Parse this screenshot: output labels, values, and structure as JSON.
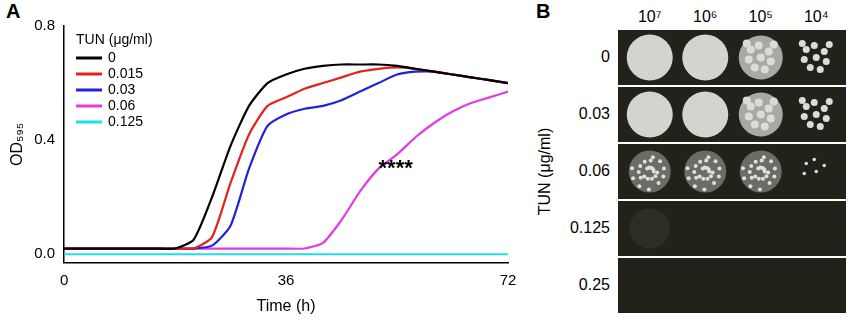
{
  "chart_data": {
    "panel": "A",
    "type": "line",
    "x_label": "Time (h)",
    "y_label": "OD₅₉₅",
    "legend_title": "TUN (μg/ml)",
    "legend": "top-left",
    "grid": false,
    "xlim": [
      0,
      72
    ],
    "xticks": [
      0,
      36,
      72
    ],
    "ylim": [
      -0.03,
      0.8
    ],
    "yticks": [
      {
        "value": 0,
        "label": "0.0"
      },
      {
        "value": 0.4,
        "label": "0.4"
      },
      {
        "value": 0.8,
        "label": "0.8"
      }
    ],
    "x": [
      0,
      3,
      6,
      9,
      12,
      15,
      18,
      21,
      24,
      27,
      30,
      33,
      36,
      39,
      42,
      45,
      48,
      51,
      54,
      57,
      60,
      63,
      66,
      69,
      72
    ],
    "series": [
      {
        "name": "0",
        "color": "#000000",
        "values": [
          0.02,
          0.02,
          0.02,
          0.02,
          0.02,
          0.02,
          0.02,
          0.05,
          0.2,
          0.38,
          0.52,
          0.6,
          0.63,
          0.65,
          0.66,
          0.665,
          0.665,
          0.665,
          0.66,
          0.65,
          0.64,
          0.63,
          0.62,
          0.61,
          0.6
        ]
      },
      {
        "name": "0.015",
        "color": "#e8201c",
        "values": [
          0.02,
          0.02,
          0.02,
          0.02,
          0.02,
          0.02,
          0.02,
          0.02,
          0.06,
          0.25,
          0.42,
          0.52,
          0.55,
          0.58,
          0.6,
          0.62,
          0.64,
          0.65,
          0.655,
          0.65,
          0.64,
          0.63,
          0.62,
          0.61,
          0.6
        ]
      },
      {
        "name": "0.03",
        "color": "#1f22d8",
        "values": [
          0.02,
          0.02,
          0.02,
          0.02,
          0.02,
          0.02,
          0.02,
          0.02,
          0.03,
          0.1,
          0.3,
          0.45,
          0.49,
          0.51,
          0.52,
          0.54,
          0.57,
          0.6,
          0.63,
          0.64,
          0.64,
          0.63,
          0.62,
          0.61,
          0.6
        ]
      },
      {
        "name": "0.06",
        "color": "#e03ce0",
        "values": [
          0.02,
          0.02,
          0.02,
          0.02,
          0.02,
          0.02,
          0.02,
          0.02,
          0.02,
          0.02,
          0.02,
          0.02,
          0.02,
          0.02,
          0.04,
          0.12,
          0.22,
          0.3,
          0.35,
          0.41,
          0.46,
          0.5,
          0.53,
          0.55,
          0.57
        ]
      },
      {
        "name": "0.125",
        "color": "#22dde6",
        "values": [
          0,
          0,
          0,
          0,
          0,
          0,
          0,
          0,
          0,
          0,
          0,
          0,
          0,
          0,
          0,
          0,
          0,
          0,
          0,
          0,
          0,
          0,
          0,
          0,
          0
        ]
      }
    ],
    "annotations": [
      {
        "text": "****",
        "x": 51,
        "y": 0.3
      }
    ]
  },
  "panel_b": {
    "panel": "B",
    "axis_label": "TUN (μg/ml)",
    "columns": [
      "10⁷",
      "10⁶",
      "10⁵",
      "10⁴"
    ],
    "rows": [
      "0",
      "0.03",
      "0.06",
      "0.125",
      "0.25"
    ]
  }
}
